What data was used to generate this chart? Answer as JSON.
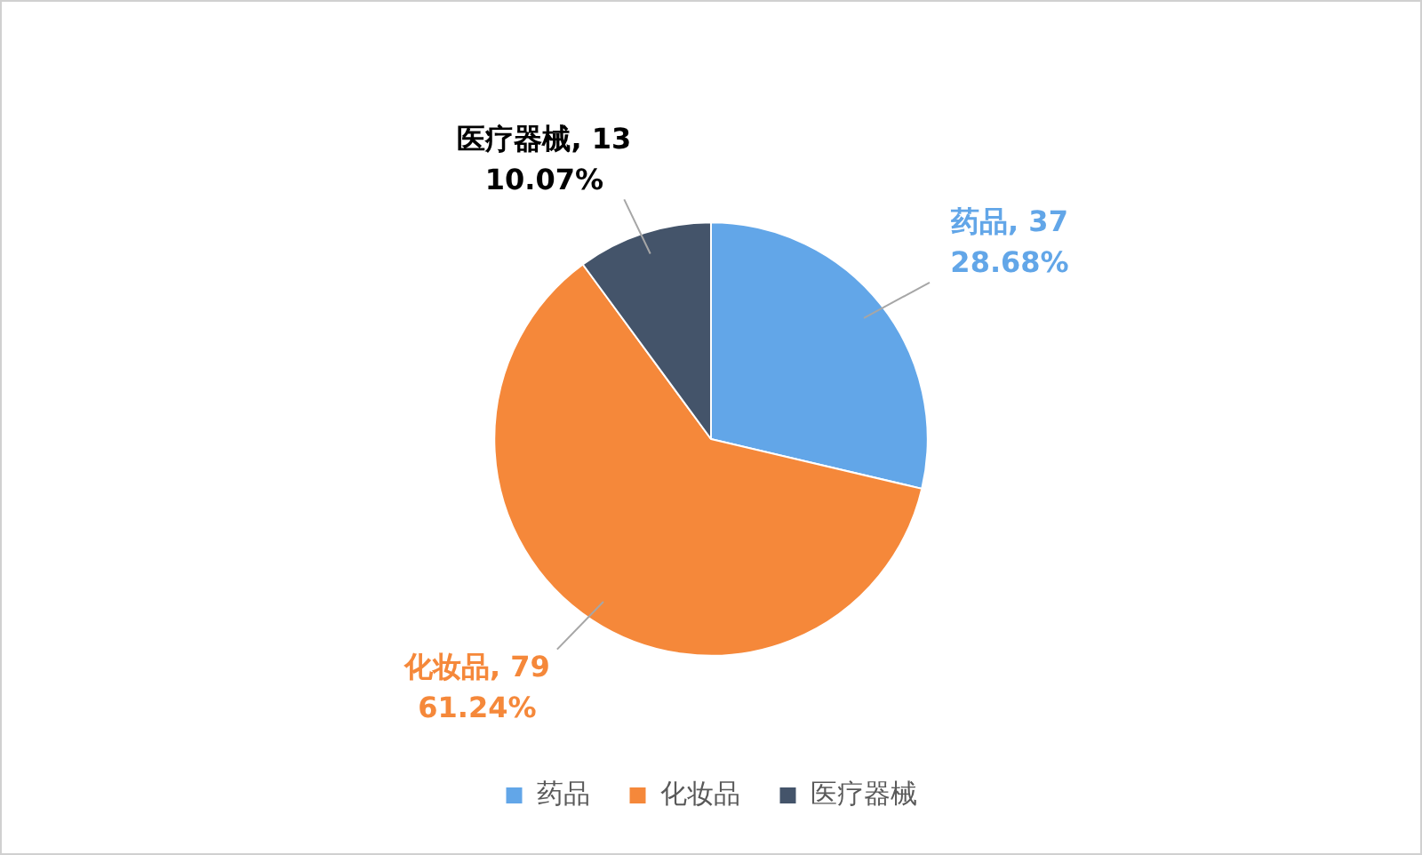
{
  "chart_data": {
    "type": "pie",
    "categories": [
      "药品",
      "化妆品",
      "医疗器械"
    ],
    "values": [
      37,
      79,
      13
    ],
    "colors": [
      "#62a6e8",
      "#f5883a",
      "#44546a"
    ],
    "value_labels": [
      ", 37",
      ", 79",
      ", 13"
    ],
    "annotations": [
      {
        "text": "28.68%",
        "x": "药品"
      },
      {
        "text": "61.24%",
        "x": "化妆品"
      },
      {
        "text": "10.07%",
        "x": "医疗器械"
      }
    ],
    "legend": "bottom"
  }
}
